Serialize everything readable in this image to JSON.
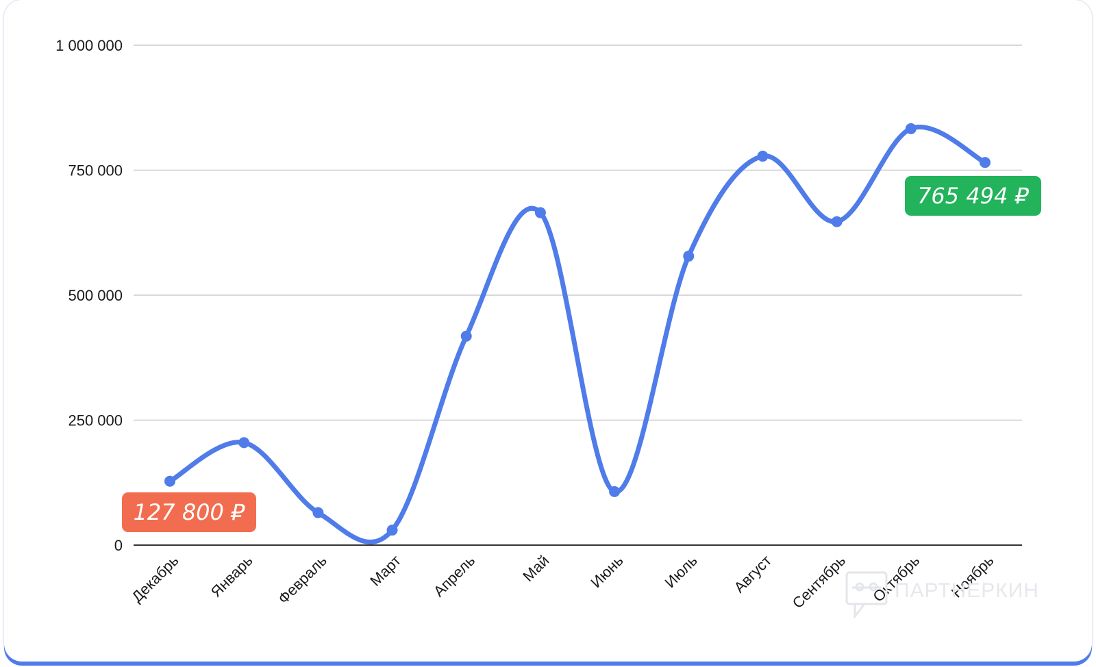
{
  "chart_data": {
    "type": "line",
    "smooth": true,
    "categories": [
      "Декабрь",
      "Январь",
      "Февраль",
      "Март",
      "Апрель",
      "Май",
      "Июнь",
      "Июль",
      "Август",
      "Сентябрь",
      "Октябрь",
      "Ноябрь"
    ],
    "series": [
      {
        "values": [
          127800,
          205000,
          65000,
          30000,
          418000,
          665000,
          107000,
          578000,
          778000,
          647000,
          833000,
          765494
        ],
        "color": "#4f7ce9"
      }
    ],
    "ylim": [
      0,
      1000000
    ],
    "yticks": [
      0,
      250000,
      500000,
      750000,
      1000000
    ],
    "ytick_labels": [
      "0",
      "250 000",
      "500 000",
      "750 000",
      "1 000 000"
    ],
    "grid": true,
    "annotations": [
      {
        "text": "127 800 ₽",
        "point_index": 0,
        "color": "#f26d4f"
      },
      {
        "text": "765 494 ₽",
        "point_index": 11,
        "color": "#22b35b"
      }
    ]
  },
  "watermark": {
    "text": "ПАРТНЕРКИН",
    "icon": "chat-bubble-logo-icon"
  }
}
